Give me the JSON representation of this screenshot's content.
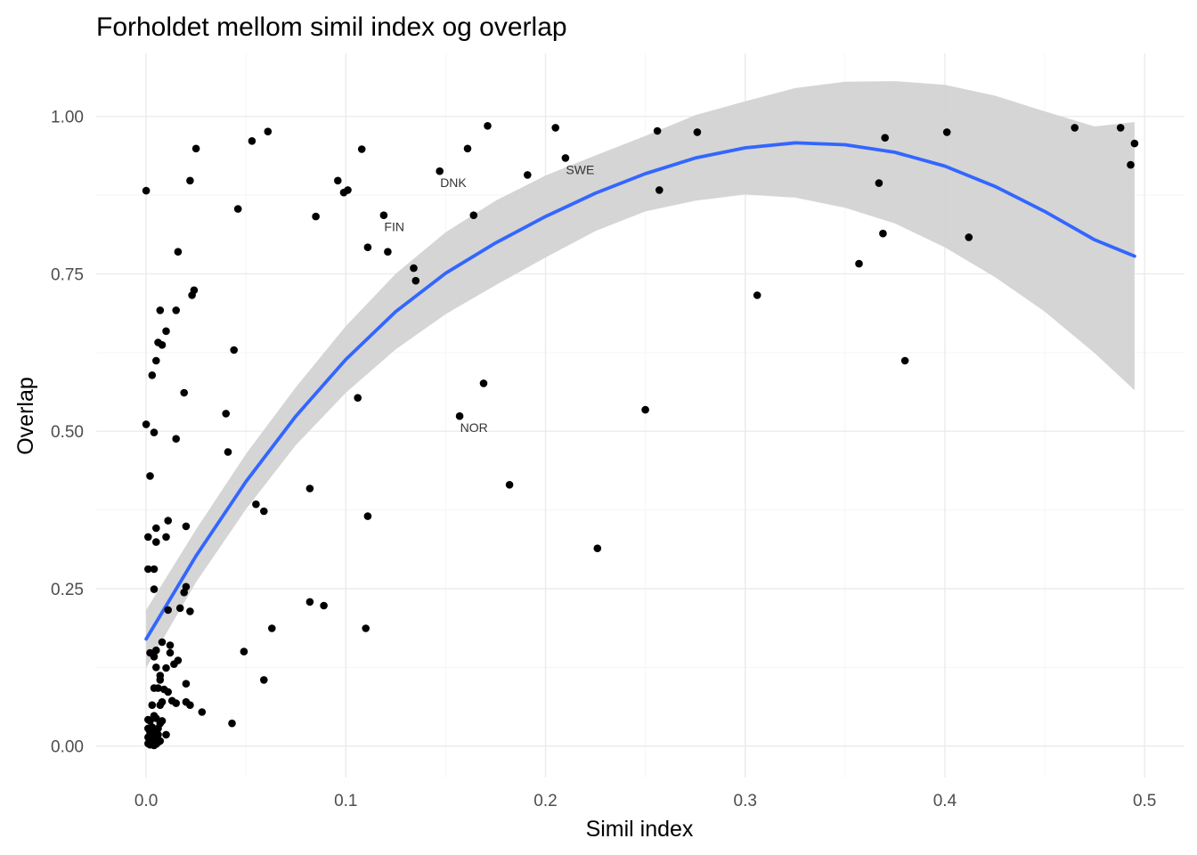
{
  "chart_data": {
    "type": "scatter",
    "title": "Forholdet mellom simil index og overlap",
    "xlabel": "Simil index",
    "ylabel": "Overlap",
    "xlim": [
      -0.025,
      0.52
    ],
    "ylim": [
      -0.05,
      1.1
    ],
    "x_ticks": [
      0.0,
      0.1,
      0.2,
      0.3,
      0.4,
      0.5
    ],
    "x_tick_labels": [
      "0.0",
      "0.1",
      "0.2",
      "0.3",
      "0.4",
      "0.5"
    ],
    "y_ticks": [
      0.0,
      0.25,
      0.5,
      0.75,
      1.0
    ],
    "y_tick_labels": [
      "0.00",
      "0.25",
      "0.50",
      "0.75",
      "1.00"
    ],
    "grid": true,
    "colors": {
      "point": "#000000",
      "smooth_line": "#3366ff",
      "ribbon": "#d3d3d3",
      "grid_major": "#ebebeb",
      "grid_minor": "#f5f5f5",
      "label": "#333333"
    },
    "labeled_points": [
      {
        "label": "DNK",
        "x": 0.147,
        "y": 0.913
      },
      {
        "label": "SWE",
        "x": 0.21,
        "y": 0.934
      },
      {
        "label": "FIN",
        "x": 0.119,
        "y": 0.843
      },
      {
        "label": "NOR",
        "x": 0.157,
        "y": 0.524
      }
    ],
    "points": [
      [
        0.0,
        0.882
      ],
      [
        0.0,
        0.511
      ],
      [
        0.001,
        0.332
      ],
      [
        0.001,
        0.281
      ],
      [
        0.002,
        0.429
      ],
      [
        0.004,
        0.281
      ],
      [
        0.004,
        0.249
      ],
      [
        0.004,
        0.498
      ],
      [
        0.003,
        0.589
      ],
      [
        0.005,
        0.612
      ],
      [
        0.006,
        0.641
      ],
      [
        0.007,
        0.692
      ],
      [
        0.008,
        0.637
      ],
      [
        0.01,
        0.659
      ],
      [
        0.015,
        0.692
      ],
      [
        0.016,
        0.785
      ],
      [
        0.019,
        0.561
      ],
      [
        0.022,
        0.898
      ],
      [
        0.023,
        0.716
      ],
      [
        0.024,
        0.724
      ],
      [
        0.025,
        0.949
      ],
      [
        0.015,
        0.488
      ],
      [
        0.005,
        0.346
      ],
      [
        0.005,
        0.324
      ],
      [
        0.01,
        0.332
      ],
      [
        0.011,
        0.358
      ],
      [
        0.02,
        0.349
      ],
      [
        0.02,
        0.253
      ],
      [
        0.019,
        0.244
      ],
      [
        0.017,
        0.219
      ],
      [
        0.011,
        0.216
      ],
      [
        0.022,
        0.214
      ],
      [
        0.008,
        0.165
      ],
      [
        0.012,
        0.16
      ],
      [
        0.012,
        0.148
      ],
      [
        0.016,
        0.136
      ],
      [
        0.014,
        0.13
      ],
      [
        0.01,
        0.124
      ],
      [
        0.007,
        0.112
      ],
      [
        0.007,
        0.105
      ],
      [
        0.002,
        0.148
      ],
      [
        0.004,
        0.142
      ],
      [
        0.005,
        0.152
      ],
      [
        0.005,
        0.125
      ],
      [
        0.006,
        0.092
      ],
      [
        0.009,
        0.09
      ],
      [
        0.011,
        0.086
      ],
      [
        0.013,
        0.072
      ],
      [
        0.015,
        0.068
      ],
      [
        0.02,
        0.07
      ],
      [
        0.02,
        0.099
      ],
      [
        0.022,
        0.065
      ],
      [
        0.028,
        0.054
      ],
      [
        0.004,
        0.092
      ],
      [
        0.003,
        0.065
      ],
      [
        0.007,
        0.065
      ],
      [
        0.008,
        0.07
      ],
      [
        0.001,
        0.042
      ],
      [
        0.002,
        0.04
      ],
      [
        0.004,
        0.048
      ],
      [
        0.005,
        0.044
      ],
      [
        0.007,
        0.036
      ],
      [
        0.008,
        0.04
      ],
      [
        0.001,
        0.028
      ],
      [
        0.002,
        0.022
      ],
      [
        0.003,
        0.03
      ],
      [
        0.004,
        0.025
      ],
      [
        0.006,
        0.028
      ],
      [
        0.001,
        0.014
      ],
      [
        0.002,
        0.012
      ],
      [
        0.003,
        0.016
      ],
      [
        0.005,
        0.014
      ],
      [
        0.006,
        0.018
      ],
      [
        0.01,
        0.018
      ],
      [
        0.001,
        0.004
      ],
      [
        0.002,
        0.002
      ],
      [
        0.003,
        0.005
      ],
      [
        0.004,
        0.001
      ],
      [
        0.005,
        0.003
      ],
      [
        0.006,
        0.006
      ],
      [
        0.003,
        0.01
      ],
      [
        0.007,
        0.008
      ],
      [
        0.043,
        0.036
      ],
      [
        0.046,
        0.853
      ],
      [
        0.044,
        0.629
      ],
      [
        0.04,
        0.528
      ],
      [
        0.041,
        0.467
      ],
      [
        0.049,
        0.15
      ],
      [
        0.053,
        0.961
      ],
      [
        0.055,
        0.384
      ],
      [
        0.059,
        0.373
      ],
      [
        0.059,
        0.105
      ],
      [
        0.061,
        0.976
      ],
      [
        0.063,
        0.187
      ],
      [
        0.082,
        0.409
      ],
      [
        0.082,
        0.229
      ],
      [
        0.085,
        0.841
      ],
      [
        0.089,
        0.223
      ],
      [
        0.096,
        0.898
      ],
      [
        0.099,
        0.879
      ],
      [
        0.101,
        0.883
      ],
      [
        0.106,
        0.553
      ],
      [
        0.108,
        0.948
      ],
      [
        0.11,
        0.187
      ],
      [
        0.111,
        0.365
      ],
      [
        0.111,
        0.792
      ],
      [
        0.121,
        0.785
      ],
      [
        0.134,
        0.759
      ],
      [
        0.135,
        0.739
      ],
      [
        0.161,
        0.949
      ],
      [
        0.164,
        0.843
      ],
      [
        0.169,
        0.576
      ],
      [
        0.171,
        0.985
      ],
      [
        0.182,
        0.415
      ],
      [
        0.191,
        0.907
      ],
      [
        0.205,
        0.982
      ],
      [
        0.226,
        0.314
      ],
      [
        0.25,
        0.534
      ],
      [
        0.256,
        0.977
      ],
      [
        0.257,
        0.883
      ],
      [
        0.276,
        0.975
      ],
      [
        0.306,
        0.716
      ],
      [
        0.357,
        0.766
      ],
      [
        0.367,
        0.894
      ],
      [
        0.369,
        0.814
      ],
      [
        0.37,
        0.966
      ],
      [
        0.38,
        0.612
      ],
      [
        0.401,
        0.975
      ],
      [
        0.412,
        0.808
      ],
      [
        0.465,
        0.982
      ],
      [
        0.488,
        0.982
      ],
      [
        0.493,
        0.923
      ],
      [
        0.495,
        0.957
      ]
    ],
    "smooth": {
      "method": "quadratic fit with 95% confidence band",
      "x": [
        0.0,
        0.025,
        0.05,
        0.075,
        0.1,
        0.125,
        0.15,
        0.175,
        0.2,
        0.225,
        0.25,
        0.275,
        0.3,
        0.325,
        0.35,
        0.375,
        0.4,
        0.425,
        0.45,
        0.475,
        0.495
      ],
      "y": [
        0.17,
        0.302,
        0.42,
        0.524,
        0.614,
        0.69,
        0.751,
        0.799,
        0.841,
        0.878,
        0.909,
        0.934,
        0.95,
        0.958,
        0.955,
        0.943,
        0.921,
        0.889,
        0.849,
        0.804,
        0.778
      ],
      "lower": [
        0.124,
        0.26,
        0.376,
        0.478,
        0.561,
        0.63,
        0.686,
        0.732,
        0.776,
        0.818,
        0.849,
        0.866,
        0.876,
        0.871,
        0.855,
        0.83,
        0.792,
        0.745,
        0.69,
        0.624,
        0.565
      ],
      "upper": [
        0.216,
        0.344,
        0.464,
        0.57,
        0.667,
        0.75,
        0.816,
        0.866,
        0.906,
        0.938,
        0.969,
        1.002,
        1.024,
        1.045,
        1.055,
        1.056,
        1.05,
        1.033,
        1.008,
        0.984,
        0.991
      ]
    }
  }
}
